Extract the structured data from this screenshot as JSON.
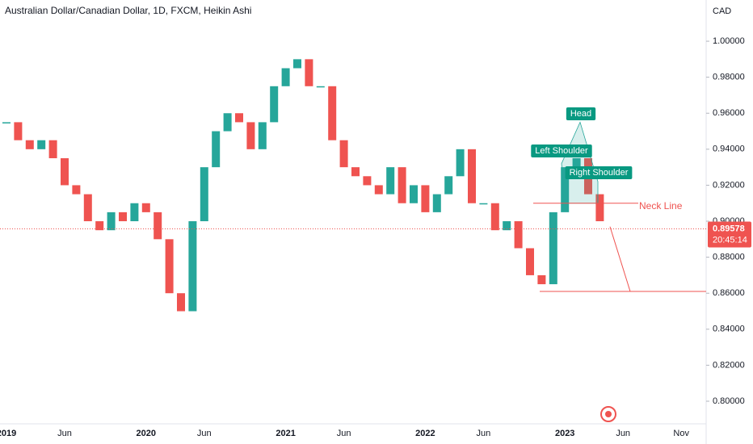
{
  "chart_data": {
    "type": "candlestick",
    "title": "Australian Dollar/Canadian Dollar, 1D, FXCM, Heikin Ashi",
    "currency": "CAD",
    "categories": [
      "2019",
      null,
      null,
      null,
      null,
      "Jun",
      null,
      null,
      null,
      null,
      null,
      null,
      "2020",
      null,
      null,
      null,
      null,
      "Jun",
      null,
      null,
      null,
      null,
      null,
      null,
      "2021",
      null,
      null,
      null,
      null,
      "Jun",
      null,
      null,
      null,
      null,
      null,
      null,
      "2022",
      null,
      null,
      null,
      null,
      "Jun",
      null,
      null,
      null,
      null,
      null,
      null,
      "2023",
      null,
      null,
      null,
      null,
      "Jun",
      null,
      null,
      null,
      null,
      "Nov"
    ],
    "values": [
      0.955,
      0.945,
      0.94,
      0.945,
      0.935,
      0.92,
      0.915,
      0.9,
      0.895,
      0.905,
      0.9,
      0.91,
      0.905,
      0.89,
      0.86,
      0.85,
      0.9,
      0.93,
      0.95,
      0.96,
      0.955,
      0.94,
      0.955,
      0.975,
      0.985,
      0.99,
      0.975,
      0.975,
      0.945,
      0.93,
      0.925,
      0.92,
      0.915,
      0.93,
      0.91,
      0.92,
      0.905,
      0.915,
      0.925,
      0.94,
      0.91,
      0.91,
      0.895,
      0.9,
      0.885,
      0.87,
      0.865,
      0.905,
      0.93,
      0.935,
      0.915,
      0.9,
      null,
      null,
      null,
      null,
      null,
      null,
      null
    ],
    "up_color": "#26a69a",
    "down_color": "#ef5350",
    "ylim": [
      0.7852,
      1.0229
    ],
    "yticks": [
      {
        "value": 0.8,
        "label": "0.80000"
      },
      {
        "value": 0.82,
        "label": "0.82000"
      },
      {
        "value": 0.84,
        "label": "0.84000"
      },
      {
        "value": 0.86,
        "label": "0.86000"
      },
      {
        "value": 0.88,
        "label": "0.88000"
      },
      {
        "value": 0.9,
        "label": "0.90000"
      },
      {
        "value": 0.92,
        "label": "0.92000"
      },
      {
        "value": 0.94,
        "label": "0.94000"
      },
      {
        "value": 0.96,
        "label": "0.96000"
      },
      {
        "value": 0.98,
        "label": "0.98000"
      },
      {
        "value": 1.0,
        "label": "1.00000"
      }
    ],
    "last_price": 0.89578,
    "countdown": "20:45:14",
    "neck_level": 0.91,
    "target_level": 0.861,
    "annotations": {
      "head": "Head",
      "left_shoulder": "Left Shoulder",
      "right_shoulder": "Right Shoulder",
      "neck_line": "Neck Line"
    }
  }
}
